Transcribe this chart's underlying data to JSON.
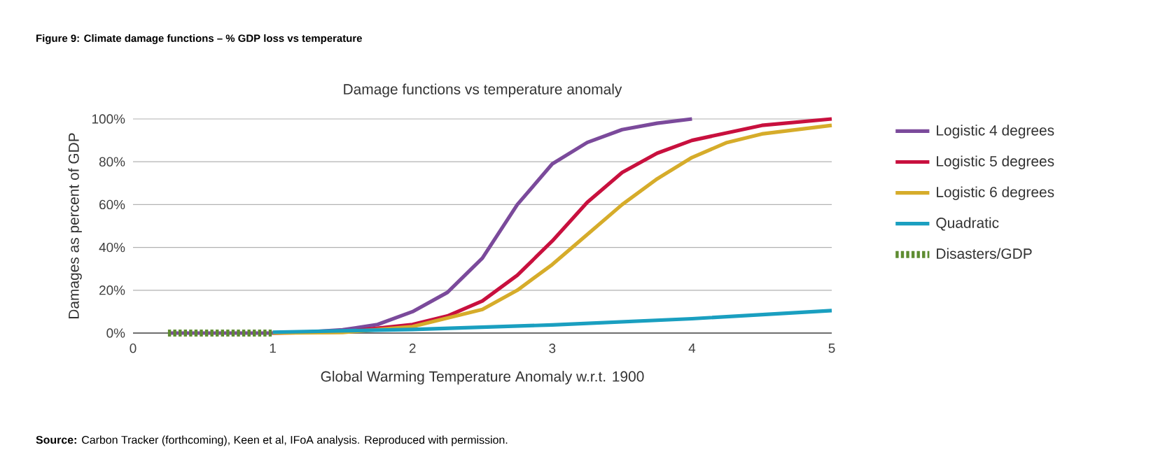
{
  "chart_data": {
    "type": "line",
    "title": "Figure 9: Climate damage functions – % GDP loss vs temperature",
    "subtitle": "Damage functions vs temperature anomaly",
    "xlabel": "Global Warming Temperature Anomaly w.r.t. 1900",
    "ylabel": "Damages as percent of GDP",
    "annotations": [
      "**Source:** Carbon Tracker (forthcoming), Keen et al, IFoA analysis. Reproduced with permission."
    ],
    "xlim": [
      0,
      5
    ],
    "ylim": [
      0,
      100
    ],
    "xticks": [
      0,
      1,
      2,
      3,
      4,
      5
    ],
    "yticks": [
      {
        "value": 0,
        "label": "0%"
      },
      {
        "value": 20,
        "label": "20%"
      },
      {
        "value": 40,
        "label": "40%"
      },
      {
        "value": 60,
        "label": "60%"
      },
      {
        "value": 80,
        "label": "80%"
      },
      {
        "value": 100,
        "label": "100%"
      }
    ],
    "grid": "y",
    "legend": "right",
    "series": [
      {
        "name": "Logistic 4 degrees",
        "color": "#7b4a9b",
        "x": [
          0.25,
          1.0,
          1.25,
          1.5,
          1.75,
          2.0,
          2.25,
          2.5,
          2.75,
          3.0,
          3.25,
          3.5,
          3.75,
          4.0
        ],
        "values": [
          0,
          0,
          0.5,
          1.5,
          4,
          10,
          19,
          35,
          60,
          79,
          89,
          95,
          98,
          100
        ]
      },
      {
        "name": "Logistic 5 degrees",
        "color": "#c8103e",
        "x": [
          1.0,
          1.5,
          2.0,
          2.25,
          2.5,
          2.75,
          3.0,
          3.25,
          3.5,
          3.75,
          4.0,
          4.5,
          5.0
        ],
        "values": [
          0,
          0.5,
          4,
          8,
          15,
          27,
          43,
          61,
          75,
          84,
          90,
          97,
          100
        ]
      },
      {
        "name": "Logistic 6 degrees",
        "color": "#d6ac2a",
        "x": [
          1.0,
          1.5,
          2.0,
          2.5,
          2.75,
          3.0,
          3.25,
          3.5,
          3.75,
          4.0,
          4.25,
          4.5,
          5.0
        ],
        "values": [
          0,
          0.3,
          3,
          11,
          20,
          32,
          46,
          60,
          72,
          82,
          89,
          93,
          97
        ]
      },
      {
        "name": "Quadratic",
        "color": "#1a9fc0",
        "x": [
          1,
          2,
          3,
          4,
          5
        ],
        "values": [
          0.4,
          1.7,
          3.8,
          6.7,
          10.5
        ]
      },
      {
        "name": "Disasters/GDP",
        "color": "#5e8c31",
        "line_style": "dashed",
        "x": [
          0.25,
          1.0
        ],
        "values": [
          0,
          0
        ]
      }
    ]
  }
}
